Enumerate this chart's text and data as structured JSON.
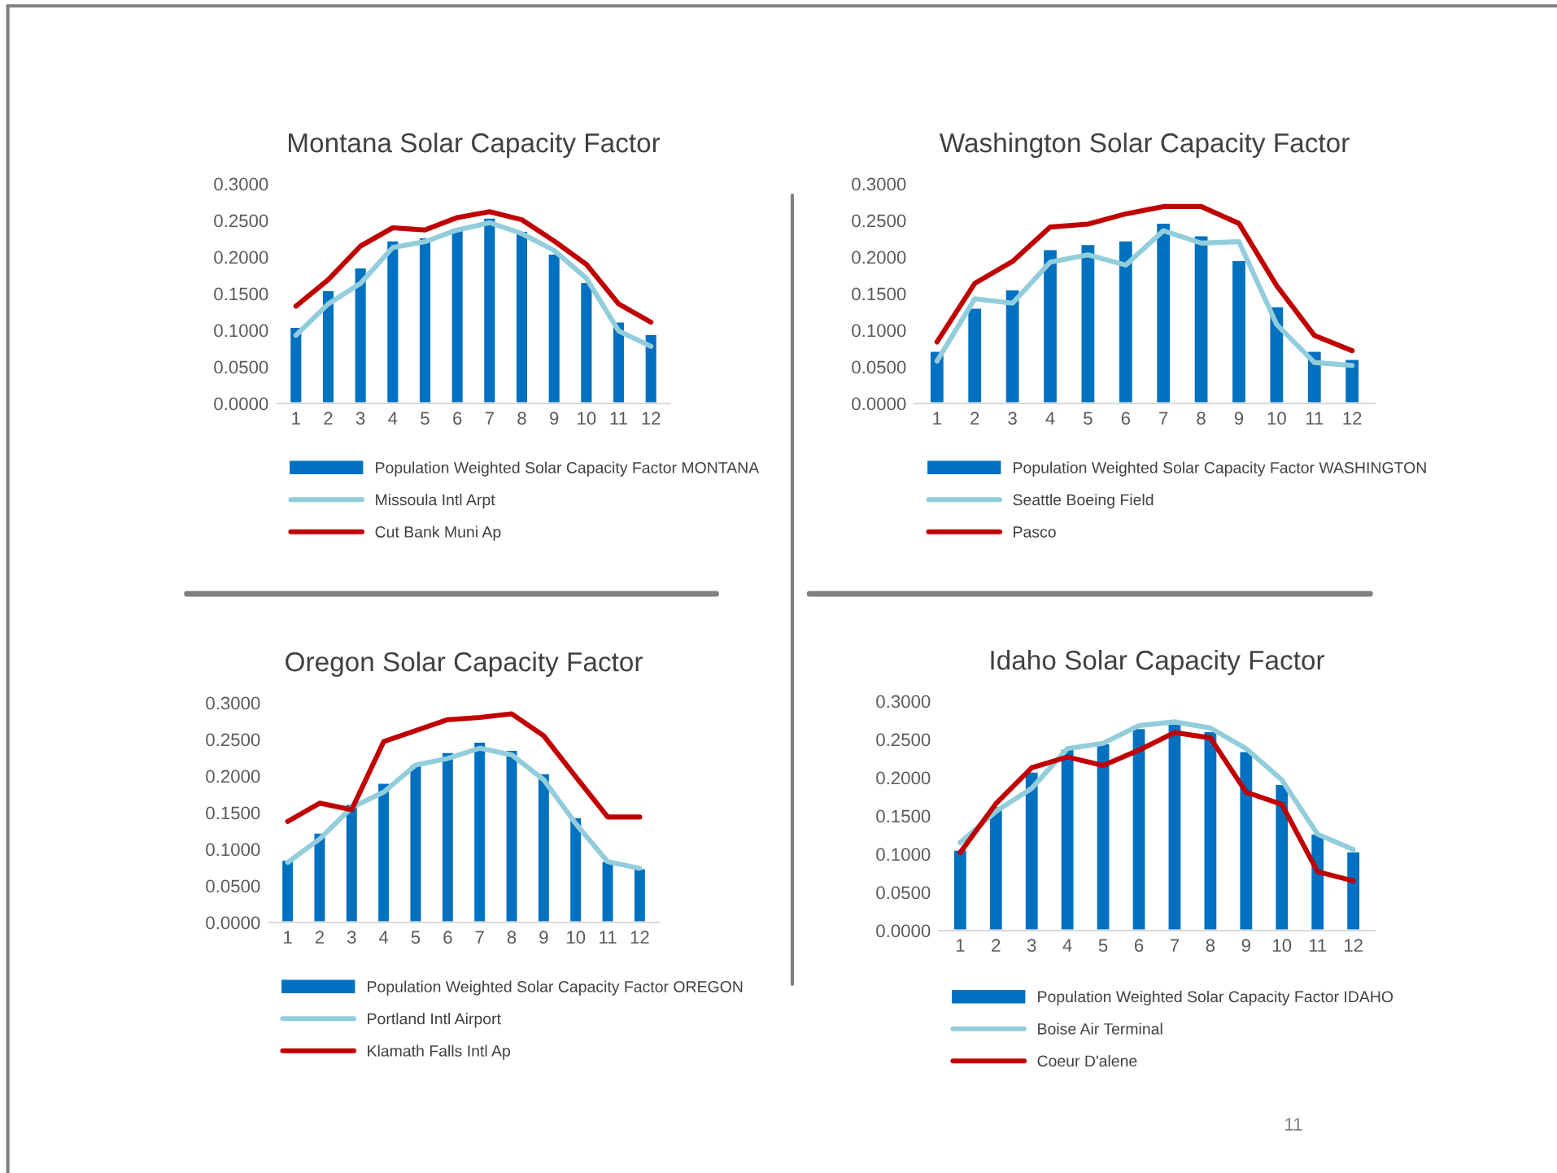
{
  "chart_data": [
    {
      "type": "bar",
      "title": "Montana Solar Capacity Factor",
      "categories": [
        "1",
        "2",
        "3",
        "4",
        "5",
        "6",
        "7",
        "8",
        "9",
        "10",
        "11",
        "12"
      ],
      "ylim": [
        0,
        0.3
      ],
      "yticks": [
        {
          "value": 0,
          "label": "0.0000"
        },
        {
          "value": 0.05,
          "label": "0.0500"
        },
        {
          "value": 0.1,
          "label": "0.1000"
        },
        {
          "value": 0.15,
          "label": "0.1500"
        },
        {
          "value": 0.2,
          "label": "0.2000"
        },
        {
          "value": 0.25,
          "label": "0.2500"
        },
        {
          "value": 0.3,
          "label": "0.3000"
        }
      ],
      "grid": false,
      "legend": "bottom",
      "series": [
        {
          "name": "Population Weighted Solar Capacity Factor MONTANA",
          "color": "#0070c0",
          "values": [
            0.105,
            0.155,
            0.186,
            0.223,
            0.227,
            0.24,
            0.254,
            0.236,
            0.205,
            0.166,
            0.112,
            0.095
          ]
        },
        {
          "name": "Missoula Intl Arpt",
          "type": "line",
          "color": "#92cddc",
          "values": [
            0.093,
            0.136,
            0.164,
            0.213,
            0.221,
            0.237,
            0.247,
            0.232,
            0.209,
            0.171,
            0.099,
            0.078
          ]
        },
        {
          "name": "Cut Bank Muni Ap",
          "type": "line",
          "color": "#c00000",
          "values": [
            0.133,
            0.169,
            0.215,
            0.24,
            0.237,
            0.254,
            0.262,
            0.251,
            0.222,
            0.19,
            0.136,
            0.111
          ]
        }
      ]
    },
    {
      "type": "bar",
      "title": "Washington Solar Capacity Factor",
      "categories": [
        "1",
        "2",
        "3",
        "4",
        "5",
        "6",
        "7",
        "8",
        "9",
        "10",
        "11",
        "12"
      ],
      "ylim": [
        0,
        0.3
      ],
      "yticks": [
        {
          "value": 0,
          "label": "0.0000"
        },
        {
          "value": 0.05,
          "label": "0.0500"
        },
        {
          "value": 0.1,
          "label": "0.1000"
        },
        {
          "value": 0.15,
          "label": "0.1500"
        },
        {
          "value": 0.2,
          "label": "0.2000"
        },
        {
          "value": 0.25,
          "label": "0.2500"
        },
        {
          "value": 0.3,
          "label": "0.3000"
        }
      ],
      "grid": false,
      "legend": "bottom",
      "series": [
        {
          "name": "Population Weighted Solar Capacity Factor WASHINGTON",
          "color": "#0070c0",
          "values": [
            0.072,
            0.131,
            0.156,
            0.211,
            0.218,
            0.223,
            0.247,
            0.23,
            0.196,
            0.133,
            0.072,
            0.061
          ]
        },
        {
          "name": "Seattle Boeing Field",
          "type": "line",
          "color": "#92cddc",
          "values": [
            0.058,
            0.143,
            0.137,
            0.193,
            0.203,
            0.189,
            0.236,
            0.219,
            0.221,
            0.108,
            0.056,
            0.052
          ]
        },
        {
          "name": "Pasco",
          "type": "line",
          "color": "#c00000",
          "values": [
            0.084,
            0.164,
            0.194,
            0.241,
            0.245,
            0.259,
            0.269,
            0.269,
            0.246,
            0.161,
            0.093,
            0.072
          ]
        }
      ]
    },
    {
      "type": "bar",
      "title": "Oregon Solar Capacity Factor",
      "categories": [
        "1",
        "2",
        "3",
        "4",
        "5",
        "6",
        "7",
        "8",
        "9",
        "10",
        "11",
        "12"
      ],
      "ylim": [
        0,
        0.3
      ],
      "yticks": [
        {
          "value": 0,
          "label": "0.0000"
        },
        {
          "value": 0.05,
          "label": "0.0500"
        },
        {
          "value": 0.1,
          "label": "0.1000"
        },
        {
          "value": 0.15,
          "label": "0.1500"
        },
        {
          "value": 0.2,
          "label": "0.2000"
        },
        {
          "value": 0.25,
          "label": "0.2500"
        },
        {
          "value": 0.3,
          "label": "0.3000"
        }
      ],
      "grid": false,
      "legend": "bottom",
      "series": [
        {
          "name": "Population Weighted Solar Capacity Factor OREGON",
          "color": "#0070c0",
          "values": [
            0.086,
            0.123,
            0.162,
            0.191,
            0.216,
            0.233,
            0.247,
            0.236,
            0.204,
            0.144,
            0.084,
            0.074
          ]
        },
        {
          "name": "Portland Intl Airport",
          "type": "line",
          "color": "#92cddc",
          "values": [
            0.082,
            0.114,
            0.157,
            0.178,
            0.215,
            0.224,
            0.238,
            0.229,
            0.195,
            0.135,
            0.083,
            0.074
          ]
        },
        {
          "name": "Klamath Falls Intl Ap",
          "type": "line",
          "color": "#c00000",
          "values": [
            0.138,
            0.163,
            0.154,
            0.247,
            0.262,
            0.277,
            0.28,
            0.285,
            0.255,
            0.199,
            0.144,
            0.144
          ]
        }
      ]
    },
    {
      "type": "bar",
      "title": "Idaho Solar Capacity Factor",
      "categories": [
        "1",
        "2",
        "3",
        "4",
        "5",
        "6",
        "7",
        "8",
        "9",
        "10",
        "11",
        "12"
      ],
      "ylim": [
        0,
        0.3
      ],
      "yticks": [
        {
          "value": 0,
          "label": "0.0000"
        },
        {
          "value": 0.05,
          "label": "0.0500"
        },
        {
          "value": 0.1,
          "label": "0.1000"
        },
        {
          "value": 0.15,
          "label": "0.1500"
        },
        {
          "value": 0.2,
          "label": "0.2000"
        },
        {
          "value": 0.25,
          "label": "0.2500"
        },
        {
          "value": 0.3,
          "label": "0.3000"
        }
      ],
      "grid": false,
      "legend": "bottom",
      "annotations": [
        "11"
      ],
      "series": [
        {
          "name": "Population Weighted Solar Capacity Factor IDAHO",
          "color": "#0070c0",
          "values": [
            0.106,
            0.163,
            0.208,
            0.238,
            0.245,
            0.265,
            0.271,
            0.261,
            0.235,
            0.192,
            0.127,
            0.104
          ]
        },
        {
          "name": "Boise Air Terminal",
          "type": "line",
          "color": "#92cddc",
          "values": [
            0.115,
            0.156,
            0.186,
            0.238,
            0.245,
            0.268,
            0.273,
            0.265,
            0.238,
            0.197,
            0.126,
            0.106
          ]
        },
        {
          "name": "Coeur D'alene",
          "type": "line",
          "color": "#c00000",
          "values": [
            0.102,
            0.166,
            0.213,
            0.227,
            0.216,
            0.236,
            0.259,
            0.252,
            0.181,
            0.165,
            0.077,
            0.065
          ]
        }
      ]
    }
  ]
}
